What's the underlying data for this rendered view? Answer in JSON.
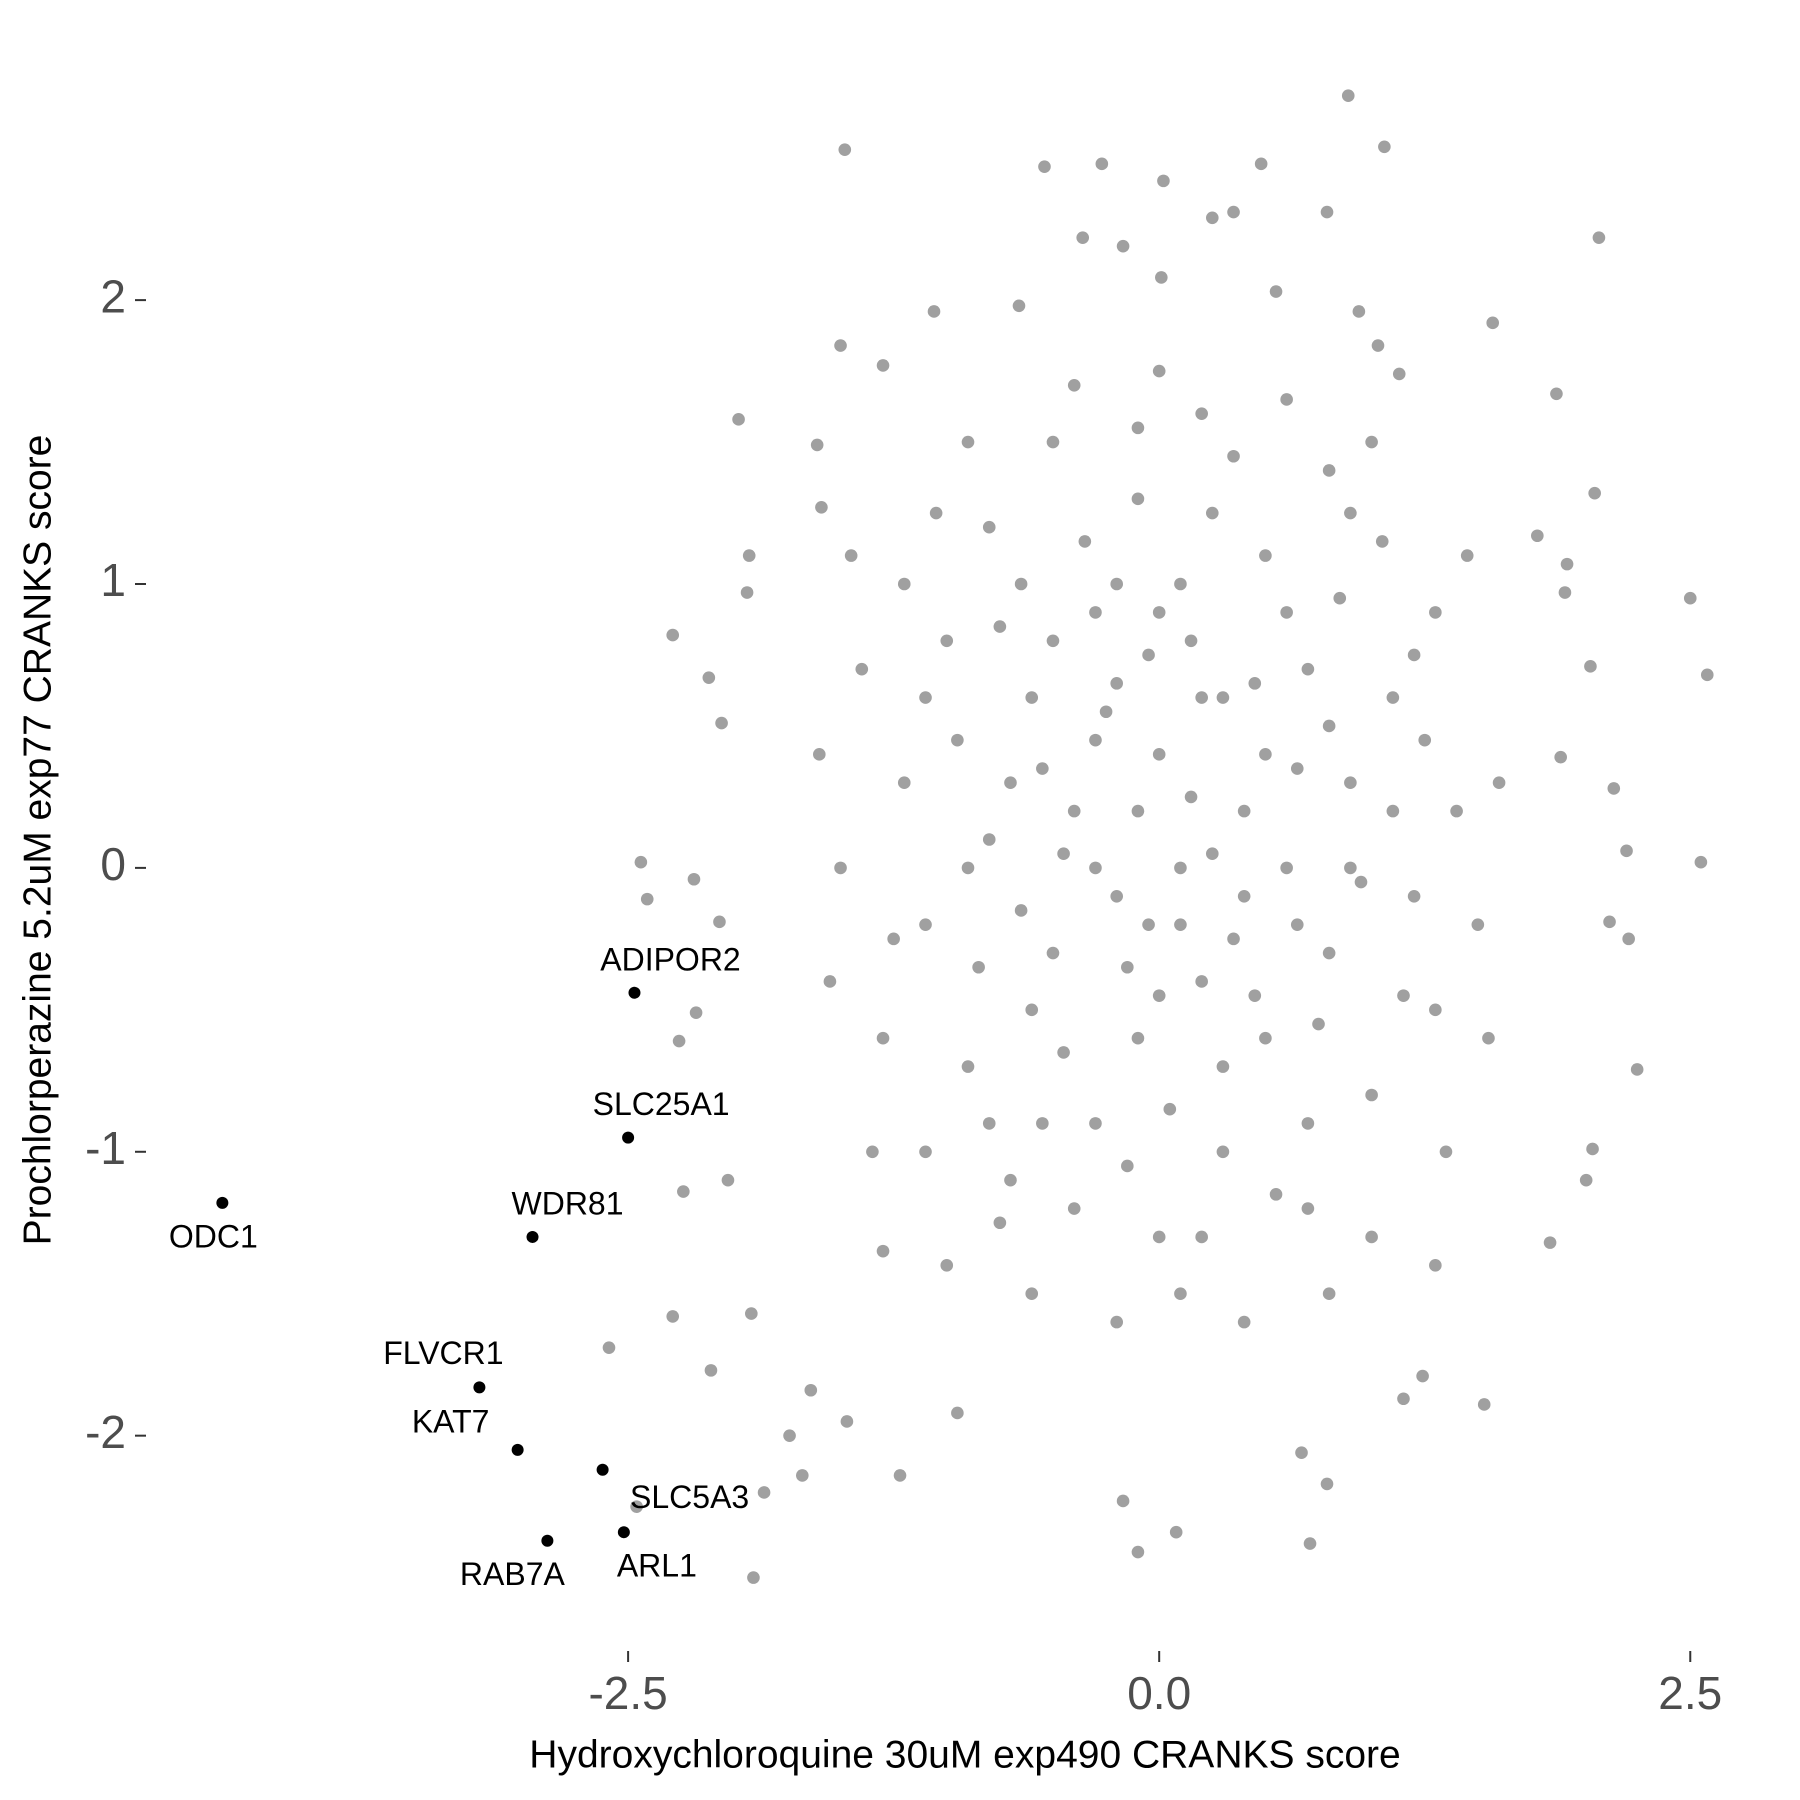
{
  "chart_data": {
    "type": "scatter",
    "x_label": "Hydroxychloroquine 30uM exp490 CRANKS score",
    "y_label": "Prochlorperazine 5.2uM exp77 CRANKS score",
    "xlim": [
      -4.6,
      2.8
    ],
    "ylim": [
      -2.6,
      2.8
    ],
    "xticks": [
      -2.5,
      {
        "value": 0,
        "label": "0.0"
      },
      2.5
    ],
    "yticks": [
      -2,
      -1,
      0,
      1,
      2
    ],
    "series": [
      {
        "color": "#a0a0a0",
        "x": [
          0.89,
          -1.48,
          1.06,
          -0.54,
          -0.27,
          0.48,
          0.02,
          0.79,
          0.25,
          0.35,
          -0.36,
          -0.17,
          2.07,
          0.01,
          0.55,
          -1.06,
          -0.66,
          1.57,
          -1.5,
          -1.3,
          -1.98,
          1.87,
          -1.61,
          -1.59,
          2.05,
          1.78,
          2.5,
          2.58,
          2.55,
          2.25,
          2.04,
          1.15,
          1.53,
          0.79,
          0.67,
          0.71,
          -0.17,
          -0.1,
          0.08,
          -1.91,
          -2.29,
          -2.44,
          -2.41,
          -2.19,
          -2.07,
          -2.18,
          -2.26,
          -2.03,
          -2.24,
          -2.29,
          -2.59,
          -2.11,
          -2.46,
          -1.86,
          -1.74,
          -1.68,
          -1.92,
          -2.12,
          -2.06,
          -1.93,
          -1.94,
          -1.22,
          -1.47,
          -1.64,
          -0.95,
          1.24,
          1.84,
          2.01,
          2.12,
          2.21,
          2.14,
          2.2,
          2.03,
          1.89,
          1.91,
          1.92,
          1.13,
          1.03,
          0.94,
          -1.2,
          -1.1,
          -1.0,
          -0.9,
          -0.8,
          -0.8,
          -0.7,
          -0.6,
          -0.5,
          -0.5,
          -0.4,
          -0.3,
          -0.3,
          -0.2,
          -0.1,
          -0.1,
          0.0,
          0.0,
          0.1,
          0.1,
          0.2,
          0.2,
          0.3,
          0.3,
          0.4,
          0.5,
          0.5,
          0.6,
          0.7,
          0.7,
          0.8,
          0.8,
          0.9,
          1.0,
          1.1,
          1.2,
          1.3,
          1.3,
          1.4,
          -1.3,
          -1.4,
          -1.2,
          -1.1,
          -0.95,
          -0.85,
          -0.75,
          -0.65,
          -0.55,
          -0.45,
          -0.35,
          -0.25,
          -0.15,
          -0.05,
          0.05,
          0.15,
          0.25,
          0.35,
          0.45,
          0.55,
          0.65,
          0.75,
          0.85,
          0.95,
          1.05,
          1.15,
          1.25,
          -1.0,
          -0.6,
          -0.2,
          0.4,
          0.8,
          -0.9,
          -0.4,
          0.0,
          0.6,
          1.0,
          -1.5,
          1.5,
          -1.35,
          1.35,
          -0.7,
          -0.3,
          0.2,
          0.4,
          -0.1,
          0.1,
          -0.6,
          0.6,
          -0.2,
          0.3,
          -0.9,
          0.9,
          -0.5,
          0.5,
          -0.4,
          0.2,
          -0.8,
          0.7,
          -1.1,
          1.1,
          -0.3,
          0.15,
          -0.65,
          0.8,
          0.0,
          -0.15,
          0.45,
          -1.25,
          1.2,
          -0.55,
          0.35,
          -0.75,
          1.0,
          -1.05,
          0.9,
          -0.1,
          0.1,
          -1.6,
          1.6,
          -1.55,
          1.55,
          -1.45,
          1.45,
          -1.3,
          1.3,
          -0.2,
          0.25,
          -0.45,
          0.65,
          -0.05,
          0.0
        ],
        "y": [
          2.72,
          2.53,
          2.54,
          2.47,
          2.48,
          2.48,
          2.42,
          2.31,
          2.29,
          2.31,
          2.22,
          2.19,
          2.22,
          2.08,
          2.03,
          1.96,
          1.98,
          1.92,
          1.84,
          1.77,
          1.58,
          1.67,
          1.49,
          1.27,
          1.32,
          1.17,
          0.95,
          0.68,
          0.02,
          -0.71,
          -0.99,
          -1.87,
          -1.89,
          -2.17,
          -2.06,
          -2.38,
          -2.23,
          -2.41,
          -2.34,
          -2.5,
          0.82,
          0.02,
          -0.11,
          -0.04,
          -0.19,
          -0.51,
          -0.61,
          -1.1,
          -1.14,
          -1.58,
          -1.69,
          -1.77,
          -2.25,
          -2.2,
          -2.0,
          -2.14,
          -1.57,
          0.67,
          0.51,
          1.1,
          0.97,
          -2.14,
          -1.95,
          -1.84,
          -1.92,
          -1.79,
          -1.32,
          -1.1,
          -0.19,
          -0.25,
          0.28,
          0.06,
          0.71,
          0.39,
          0.97,
          1.07,
          1.74,
          1.84,
          1.96,
          0.3,
          -0.2,
          0.8,
          -0.7,
          1.2,
          0.1,
          -1.1,
          0.6,
          -0.3,
          1.5,
          0.2,
          -0.9,
          0.9,
          -0.1,
          1.3,
          -0.6,
          0.4,
          -1.3,
          0.0,
          1.0,
          -0.4,
          1.6,
          0.6,
          -1.0,
          0.2,
          -0.6,
          1.1,
          0.0,
          -1.2,
          0.7,
          -0.3,
          1.4,
          0.3,
          -0.8,
          0.6,
          -0.1,
          0.9,
          -0.5,
          0.2,
          -0.6,
          0.7,
          1.0,
          -1.0,
          0.45,
          -0.35,
          0.85,
          -0.15,
          0.35,
          -0.65,
          1.15,
          0.55,
          -0.35,
          0.75,
          -0.85,
          0.25,
          1.25,
          -0.25,
          0.65,
          -1.15,
          0.35,
          -0.55,
          0.95,
          -0.05,
          1.15,
          -0.45,
          0.45,
          -1.4,
          -1.5,
          -1.6,
          -1.6,
          -1.5,
          1.5,
          1.7,
          1.75,
          1.65,
          1.5,
          0.0,
          -0.2,
          -1.0,
          -1.0,
          0.3,
          0.0,
          0.6,
          -0.1,
          0.2,
          -0.2,
          -0.5,
          0.9,
          1.0,
          -0.7,
          0.0,
          0.0,
          0.8,
          0.4,
          -1.2,
          -1.3,
          -0.9,
          -0.9,
          0.6,
          0.2,
          0.45,
          0.8,
          1.0,
          0.5,
          -0.45,
          -1.05,
          -0.45,
          -0.25,
          0.75,
          -0.9,
          1.45,
          -1.25,
          -1.3,
          1.25,
          1.25,
          1.55,
          -1.5,
          0.4,
          0.3,
          -0.4,
          -0.6,
          1.1,
          1.1,
          -1.35,
          -1.4,
          0.65,
          0.05,
          0.05,
          -0.2,
          -0.2,
          0.9
        ]
      },
      {
        "color": "#000000",
        "x": [
          -2.47,
          -2.5,
          -4.41,
          -2.95,
          -3.2,
          -3.02,
          -2.62,
          -2.52,
          -2.88
        ],
        "y": [
          -0.44,
          -0.95,
          -1.18,
          -1.3,
          -1.83,
          -2.05,
          -2.12,
          -2.34,
          -2.37
        ],
        "labels": [
          "ADIPOR2",
          "SLC25A1",
          "ODC1",
          "WDR81",
          "FLVCR1",
          "KAT7",
          "SLC5A3",
          "ARL1",
          "RAB7A"
        ]
      }
    ]
  }
}
